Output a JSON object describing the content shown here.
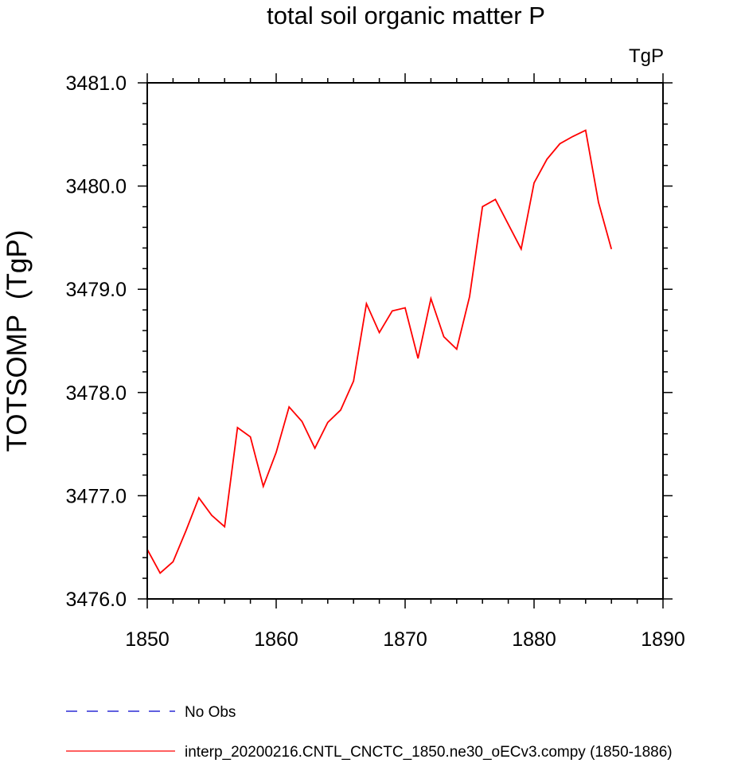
{
  "chart_data": {
    "type": "line",
    "title": "total soil organic matter P",
    "units_label": "TgP",
    "ylabel": "TOTSOMP  (TgP)",
    "xlabel": "",
    "xlim": [
      1850,
      1890
    ],
    "ylim": [
      3476.0,
      3481.0
    ],
    "x_ticks": [
      1850,
      1860,
      1870,
      1880,
      1890
    ],
    "y_ticks": [
      3476.0,
      3477.0,
      3478.0,
      3479.0,
      3480.0,
      3481.0
    ],
    "x_tick_labels": [
      "1850",
      "1860",
      "1870",
      "1880",
      "1890"
    ],
    "y_tick_labels": [
      "3476.0",
      "3477.0",
      "3478.0",
      "3479.0",
      "3480.0",
      "3481.0"
    ],
    "legend_position": "bottom-left",
    "series": [
      {
        "name": "No Obs",
        "color": "#0000cc",
        "dash": "dashed",
        "x": [],
        "y": []
      },
      {
        "name": "interp_20200216.CNTL_CNCTC_1850.ne30_oECv3.compy (1850-1886)",
        "color": "#ff0000",
        "dash": "solid",
        "x": [
          1850,
          1851,
          1852,
          1853,
          1854,
          1855,
          1856,
          1857,
          1858,
          1859,
          1860,
          1861,
          1862,
          1863,
          1864,
          1865,
          1866,
          1867,
          1868,
          1869,
          1870,
          1871,
          1872,
          1873,
          1874,
          1875,
          1876,
          1877,
          1878,
          1879,
          1880,
          1881,
          1882,
          1883,
          1884,
          1885,
          1886
        ],
        "y": [
          3476.48,
          3476.25,
          3476.36,
          3476.66,
          3476.98,
          3476.81,
          3476.7,
          3477.66,
          3477.57,
          3477.09,
          3477.42,
          3477.86,
          3477.72,
          3477.46,
          3477.71,
          3477.83,
          3478.11,
          3478.86,
          3478.58,
          3478.79,
          3478.82,
          3478.33,
          3478.91,
          3478.54,
          3478.42,
          3478.93,
          3479.8,
          3479.87,
          3479.63,
          3479.39,
          3480.03,
          3480.26,
          3480.41,
          3480.48,
          3480.54,
          3479.84,
          3479.39
        ]
      }
    ]
  }
}
